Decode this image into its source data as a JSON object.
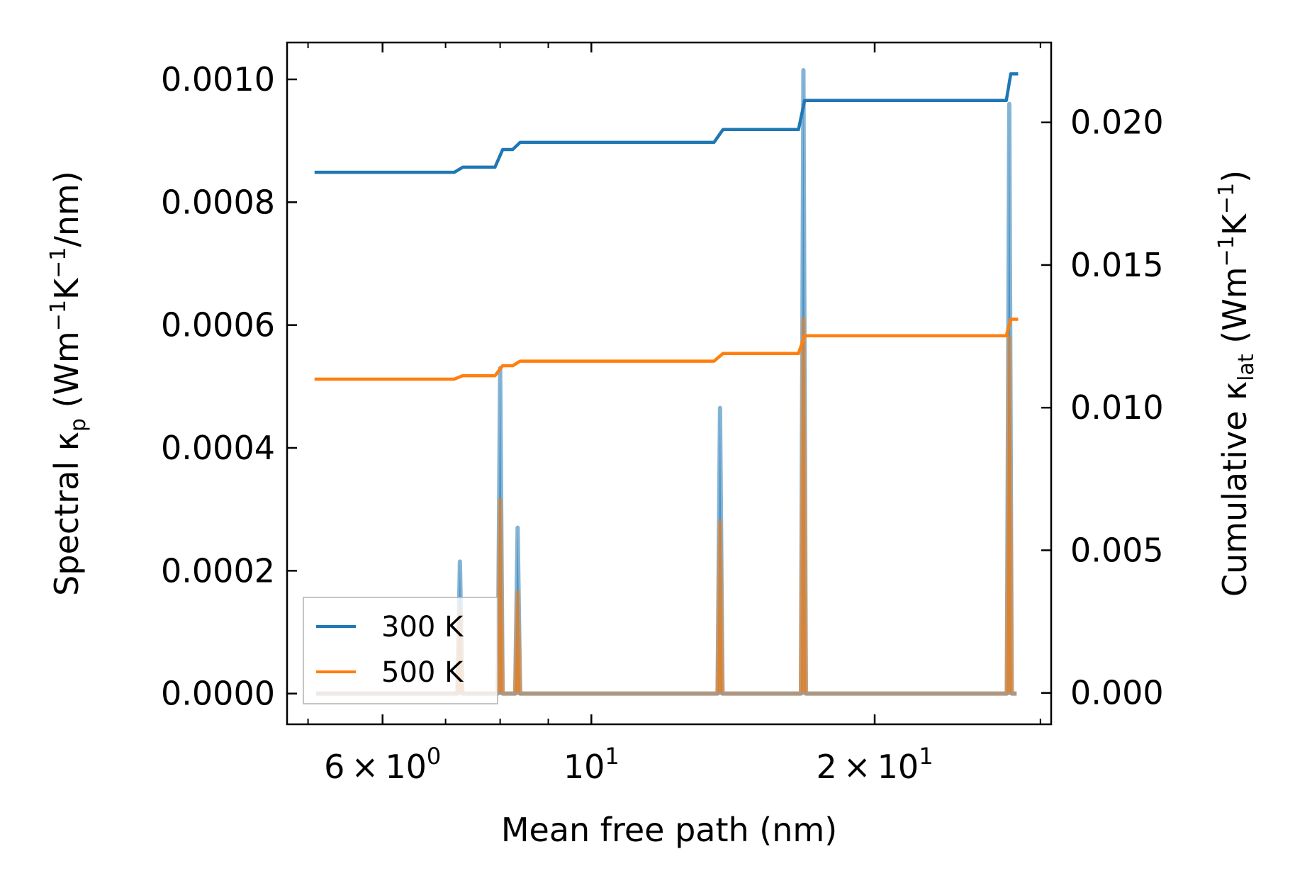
{
  "chart_data": {
    "type": "line",
    "xlabel": "Mean free path (nm)",
    "ylabel_left": {
      "main": "Spectral κ",
      "sub": "p",
      "units_pre": " (Wm",
      "sup1": "−1",
      "mid": "K",
      "sup2": "−1",
      "units_post": "/nm)"
    },
    "ylabel_right": {
      "main": "Cumulative κ",
      "sub": "lat",
      "units_pre": " (Wm",
      "sup1": "−1",
      "mid": "K",
      "sup2": "−1",
      "units_post": ")"
    },
    "x_scale": "log",
    "xlim": [
      4.75,
      30.8
    ],
    "ylim_left": [
      -5e-05,
      0.00106
    ],
    "ylim_right": [
      -0.0011,
      0.0228
    ],
    "x_ticks": [
      {
        "value": 6,
        "mantissa": "6",
        "times": "×",
        "base": "10",
        "exp": "0"
      },
      {
        "value": 10,
        "mantissa": "",
        "times": "",
        "base": "10",
        "exp": "1"
      },
      {
        "value": 20,
        "mantissa": "2",
        "times": "×",
        "base": "10",
        "exp": "1"
      }
    ],
    "x_minor_ticks": [
      5,
      7,
      8,
      9,
      30
    ],
    "y_left_ticks": [
      "0.0000",
      "0.0002",
      "0.0004",
      "0.0006",
      "0.0008",
      "0.0010"
    ],
    "y_left_tick_values": [
      0,
      0.0002,
      0.0004,
      0.0006,
      0.0008,
      0.001
    ],
    "y_right_ticks": [
      "0.000",
      "0.005",
      "0.010",
      "0.015",
      "0.020"
    ],
    "y_right_tick_values": [
      0,
      0.005,
      0.01,
      0.015,
      0.02
    ],
    "x_start": 5.1,
    "x_end": 28.3,
    "peak_halfwidth_factor": 1.006,
    "spectral_series": [
      {
        "name": "300 K",
        "color": "#1f77b4",
        "peaks": [
          {
            "x": 7.25,
            "y": 0.000215
          },
          {
            "x": 8.0,
            "y": 0.00053
          },
          {
            "x": 8.35,
            "y": 0.00027
          },
          {
            "x": 13.7,
            "y": 0.000465
          },
          {
            "x": 16.8,
            "y": 0.001015
          },
          {
            "x": 27.8,
            "y": 0.00096
          }
        ]
      },
      {
        "name": "500 K",
        "color": "#ff7f0e",
        "peaks": [
          {
            "x": 7.25,
            "y": 0.000135
          },
          {
            "x": 8.0,
            "y": 0.000315
          },
          {
            "x": 8.35,
            "y": 0.000165
          },
          {
            "x": 13.7,
            "y": 0.00028
          },
          {
            "x": 16.8,
            "y": 0.00061
          },
          {
            "x": 27.8,
            "y": 0.00058
          }
        ]
      }
    ],
    "cumulative_series": [
      {
        "name": "300 K",
        "color": "#1f77b4",
        "start": 0.01825,
        "x_end": 28.3,
        "steps": [
          {
            "x": 7.15,
            "y": 0.01825
          },
          {
            "x": 7.3,
            "y": 0.01843
          },
          {
            "x": 7.9,
            "y": 0.01843
          },
          {
            "x": 8.05,
            "y": 0.01905
          },
          {
            "x": 8.25,
            "y": 0.01905
          },
          {
            "x": 8.4,
            "y": 0.0193
          },
          {
            "x": 13.5,
            "y": 0.0193
          },
          {
            "x": 13.8,
            "y": 0.01975
          },
          {
            "x": 16.6,
            "y": 0.01975
          },
          {
            "x": 16.85,
            "y": 0.02077
          },
          {
            "x": 27.6,
            "y": 0.02077
          },
          {
            "x": 27.9,
            "y": 0.0217
          }
        ]
      },
      {
        "name": "500 K",
        "color": "#ff7f0e",
        "start": 0.011,
        "x_end": 28.3,
        "steps": [
          {
            "x": 7.15,
            "y": 0.011
          },
          {
            "x": 7.3,
            "y": 0.01112
          },
          {
            "x": 7.9,
            "y": 0.01112
          },
          {
            "x": 8.05,
            "y": 0.01147
          },
          {
            "x": 8.25,
            "y": 0.01147
          },
          {
            "x": 8.4,
            "y": 0.01163
          },
          {
            "x": 13.5,
            "y": 0.01163
          },
          {
            "x": 13.8,
            "y": 0.0119
          },
          {
            "x": 16.6,
            "y": 0.0119
          },
          {
            "x": 16.85,
            "y": 0.01252
          },
          {
            "x": 27.6,
            "y": 0.01252
          },
          {
            "x": 27.9,
            "y": 0.0131
          }
        ]
      }
    ],
    "legend": {
      "position": "lower-left",
      "entries": [
        {
          "label": "300 K",
          "color": "#1f77b4"
        },
        {
          "label": "500 K",
          "color": "#ff7f0e"
        }
      ]
    }
  }
}
